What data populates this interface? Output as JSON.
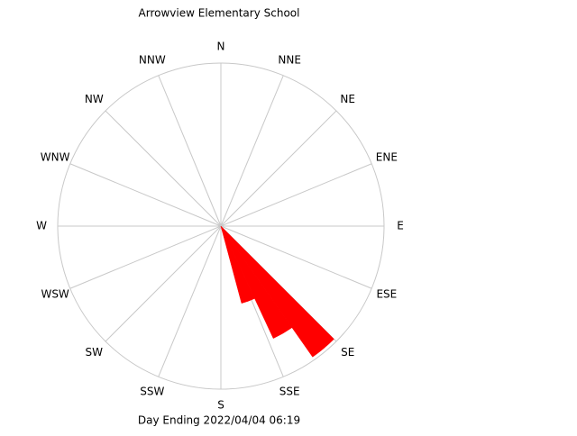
{
  "chart_data": {
    "type": "windrose",
    "title": "Arrowview Elementary School",
    "subtitle": "Day Ending 2022/04/04 06:19",
    "directions": [
      "N",
      "NNE",
      "NE",
      "ENE",
      "E",
      "ESE",
      "SE",
      "SSE",
      "S",
      "SSW",
      "SW",
      "WSW",
      "W",
      "WNW",
      "NW",
      "NNW"
    ],
    "bearings": [
      140,
      150,
      160
    ],
    "values": [
      0.98,
      0.76,
      0.49
    ],
    "sector_width": 10,
    "rlim": [
      0,
      1
    ],
    "color": "#ff0000",
    "grid": true
  }
}
